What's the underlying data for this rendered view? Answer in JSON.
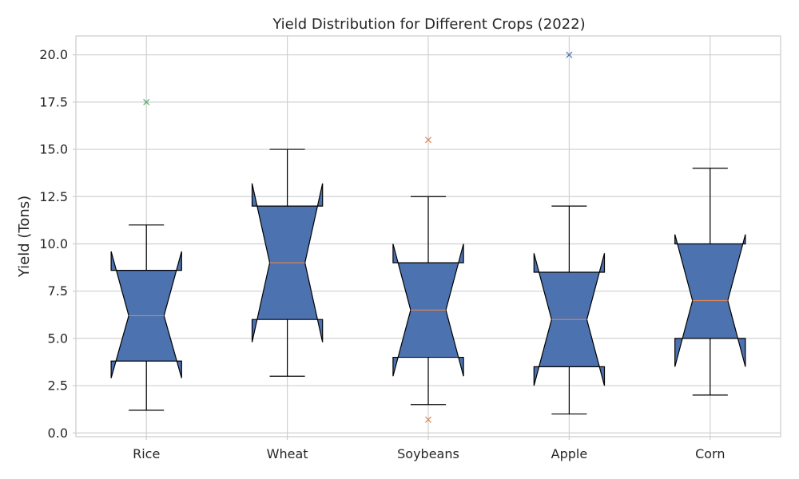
{
  "chart_data": {
    "type": "boxplot",
    "title": "Yield Distribution for Different Crops (2022)",
    "xlabel": "",
    "ylabel": "Yield (Tons)",
    "ylim": [
      -0.2,
      21
    ],
    "yticks": [
      "0.0",
      "2.5",
      "5.0",
      "7.5",
      "10.0",
      "12.5",
      "15.0",
      "17.5",
      "20.0"
    ],
    "notched": true,
    "grid": true,
    "box_color": "#4c72b0",
    "median_color": "#dd8452",
    "categories": [
      "Rice",
      "Wheat",
      "Soybeans",
      "Apple",
      "Corn"
    ],
    "boxes": [
      {
        "name": "Rice",
        "whisker_low": 1.2,
        "q1": 3.8,
        "median": 6.2,
        "q3": 8.6,
        "whisker_high": 11.0,
        "notch_low": 2.9,
        "notch_high": 9.6,
        "outliers": [
          17.5
        ],
        "outlier_color": "#55a868"
      },
      {
        "name": "Wheat",
        "whisker_low": 3.0,
        "q1": 6.0,
        "median": 9.0,
        "q3": 12.0,
        "whisker_high": 15.0,
        "notch_low": 4.8,
        "notch_high": 13.2,
        "outliers": [],
        "outlier_color": "#dd8452"
      },
      {
        "name": "Soybeans",
        "whisker_low": 1.5,
        "q1": 4.0,
        "median": 6.5,
        "q3": 9.0,
        "whisker_high": 12.5,
        "notch_low": 3.0,
        "notch_high": 10.0,
        "outliers": [
          15.5,
          0.7
        ],
        "outlier_color": "#dd8452"
      },
      {
        "name": "Apple",
        "whisker_low": 1.0,
        "q1": 3.5,
        "median": 6.0,
        "q3": 8.5,
        "whisker_high": 12.0,
        "notch_low": 2.5,
        "notch_high": 9.5,
        "outliers": [
          20.0
        ],
        "outlier_color": "#4c72b0"
      },
      {
        "name": "Corn",
        "whisker_low": 2.0,
        "q1": 5.0,
        "median": 7.0,
        "q3": 10.0,
        "whisker_high": 14.0,
        "notch_low": 3.5,
        "notch_high": 10.5,
        "outliers": [],
        "outlier_color": "#dd8452"
      }
    ]
  }
}
